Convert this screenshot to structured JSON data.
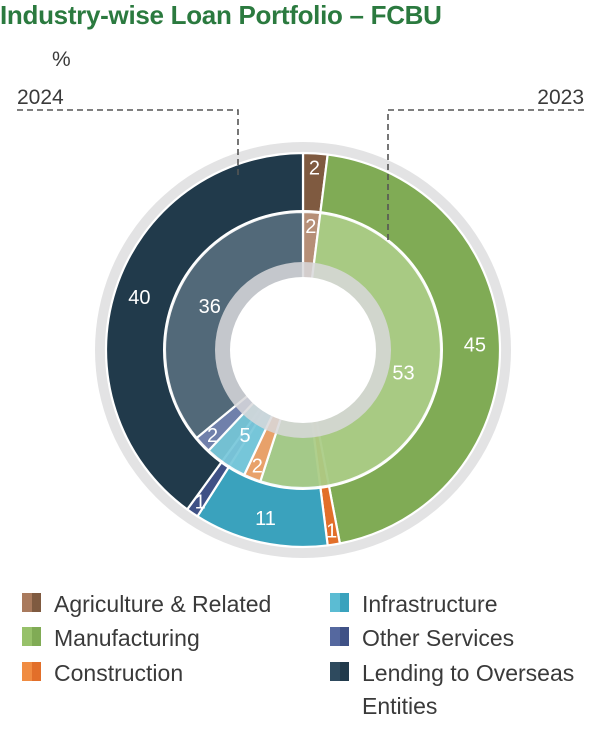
{
  "title": "Industry-wise Loan Portfolio – FCBU",
  "chart_data": {
    "type": "pie",
    "unit": "%",
    "rings": [
      {
        "name": "2024",
        "ring": "outer"
      },
      {
        "name": "2023",
        "ring": "inner"
      }
    ],
    "categories": [
      "Agriculture & Related",
      "Manufacturing",
      "Construction",
      "Infrastructure",
      "Other Services",
      "Lending to Overseas Entities"
    ],
    "series": [
      {
        "name": "2024",
        "values": [
          2,
          45,
          1,
          11,
          1,
          40
        ],
        "labels": [
          "2",
          "45",
          "1",
          "11",
          "1",
          "40"
        ]
      },
      {
        "name": "2023",
        "values": [
          2,
          53,
          2,
          5,
          2,
          36
        ],
        "labels": [
          "2",
          "53",
          "2",
          "5",
          "2",
          "36"
        ]
      }
    ],
    "colors": [
      "#a97a5d",
      "#97c16a",
      "#f08c42",
      "#5bbcd3",
      "#55689f",
      "#2e4a5e"
    ],
    "colors_dark": [
      "#7f5a40",
      "#80ab55",
      "#e26f2a",
      "#3aa2bd",
      "#3f5186",
      "#213a4b"
    ],
    "legend_position": "bottom"
  }
}
